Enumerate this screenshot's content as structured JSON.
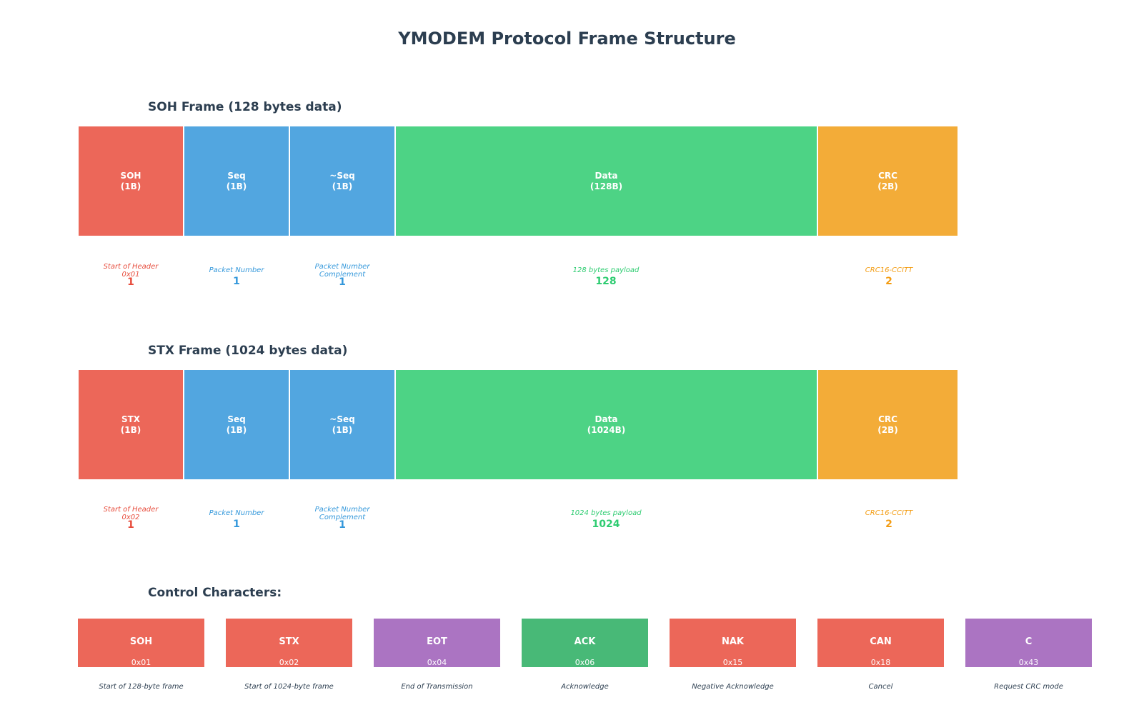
{
  "title": "YMODEM Protocol Frame Structure",
  "soh_frame": {
    "heading": "SOH Frame (128 bytes data)",
    "fields": [
      {
        "label": "SOH",
        "size": "(1B)",
        "desc": "Start of Header",
        "desc2": "0x01",
        "bytes": "1",
        "color": "#ec6759"
      },
      {
        "label": "Seq",
        "size": "(1B)",
        "desc": "Packet Number",
        "desc2": "",
        "bytes": "1",
        "color": "#52a6e0"
      },
      {
        "label": "~Seq",
        "size": "(1B)",
        "desc": "Packet Number",
        "desc2": "Complement",
        "bytes": "1",
        "color": "#52a6e0"
      },
      {
        "label": "Data",
        "size": "(128B)",
        "desc": "128 bytes payload",
        "desc2": "",
        "bytes": "128",
        "color": "#4dd385"
      },
      {
        "label": "CRC",
        "size": "(2B)",
        "desc": "CRC16-CCITT",
        "desc2": "",
        "bytes": "2",
        "color": "#f3ac38"
      }
    ]
  },
  "stx_frame": {
    "heading": "STX Frame (1024 bytes data)",
    "fields": [
      {
        "label": "STX",
        "size": "(1B)",
        "desc": "Start of Header",
        "desc2": "0x02",
        "bytes": "1",
        "color": "#ec6759"
      },
      {
        "label": "Seq",
        "size": "(1B)",
        "desc": "Packet Number",
        "desc2": "",
        "bytes": "1",
        "color": "#52a6e0"
      },
      {
        "label": "~Seq",
        "size": "(1B)",
        "desc": "Packet Number",
        "desc2": "Complement",
        "bytes": "1",
        "color": "#52a6e0"
      },
      {
        "label": "Data",
        "size": "(1024B)",
        "desc": "1024 bytes payload",
        "desc2": "",
        "bytes": "1024",
        "color": "#4dd385"
      },
      {
        "label": "CRC",
        "size": "(2B)",
        "desc": "CRC16-CCITT",
        "desc2": "",
        "bytes": "2",
        "color": "#f3ac38"
      }
    ]
  },
  "control": {
    "heading": "Control Characters:",
    "items": [
      {
        "name": "SOH",
        "hex": "0x01",
        "desc": "Start of 128-byte frame",
        "color": "#ec6759"
      },
      {
        "name": "STX",
        "hex": "0x02",
        "desc": "Start of 1024-byte frame",
        "color": "#ec6759"
      },
      {
        "name": "EOT",
        "hex": "0x04",
        "desc": "End of Transmission",
        "color": "#ab74c2"
      },
      {
        "name": "ACK",
        "hex": "0x06",
        "desc": "Acknowledge",
        "color": "#48b977"
      },
      {
        "name": "NAK",
        "hex": "0x15",
        "desc": "Negative Acknowledge",
        "color": "#ec6759"
      },
      {
        "name": "CAN",
        "hex": "0x18",
        "desc": "Cancel",
        "color": "#ec6759"
      },
      {
        "name": "C",
        "hex": "0x43",
        "desc": "Request CRC mode",
        "color": "#ab74c2"
      }
    ]
  }
}
